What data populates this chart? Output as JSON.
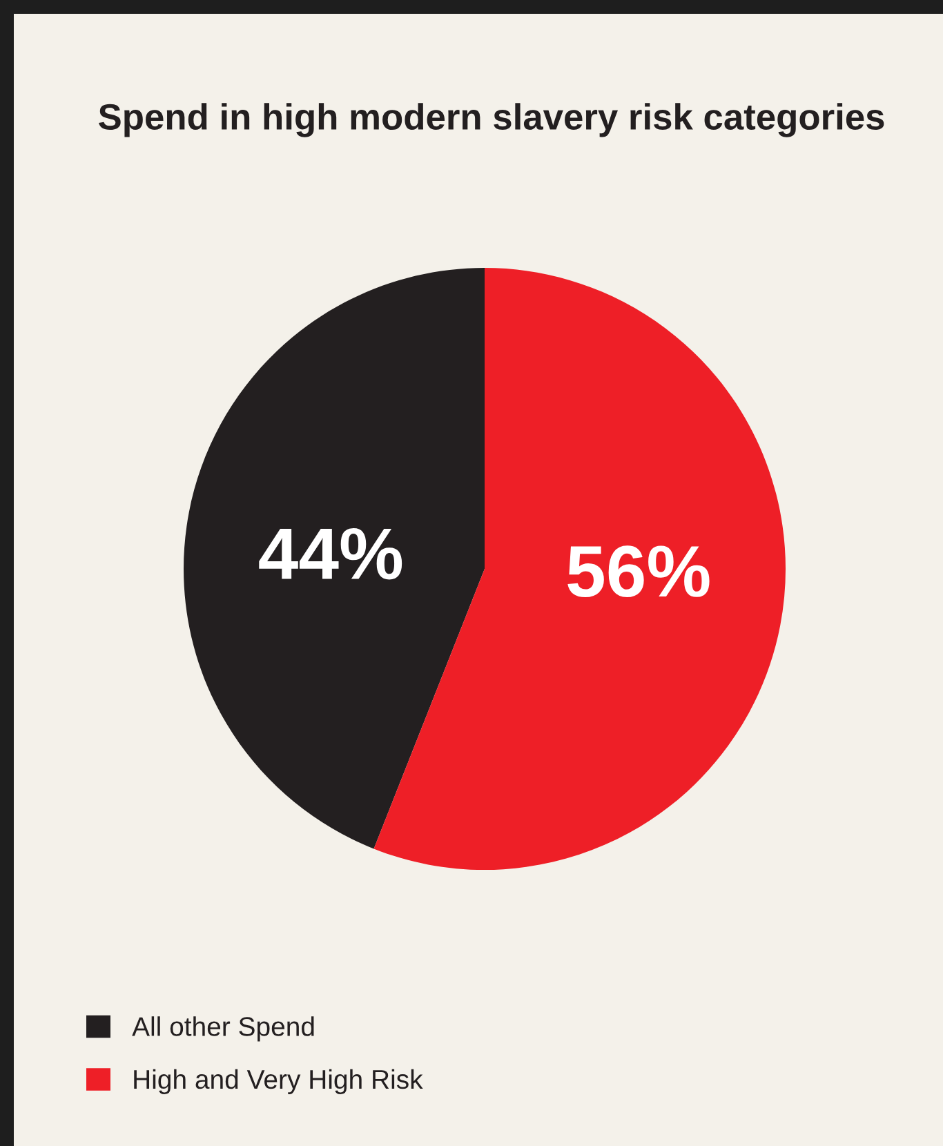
{
  "chart_data": {
    "type": "pie",
    "title": "Spend in high modern slavery risk categories",
    "categories": [
      "All other Spend",
      "High and Very High Risk"
    ],
    "values": [
      44,
      56
    ],
    "colors": [
      "#231f20",
      "#ee1f27"
    ],
    "value_labels": [
      "44%",
      "56%"
    ],
    "legend": "bottom left"
  }
}
